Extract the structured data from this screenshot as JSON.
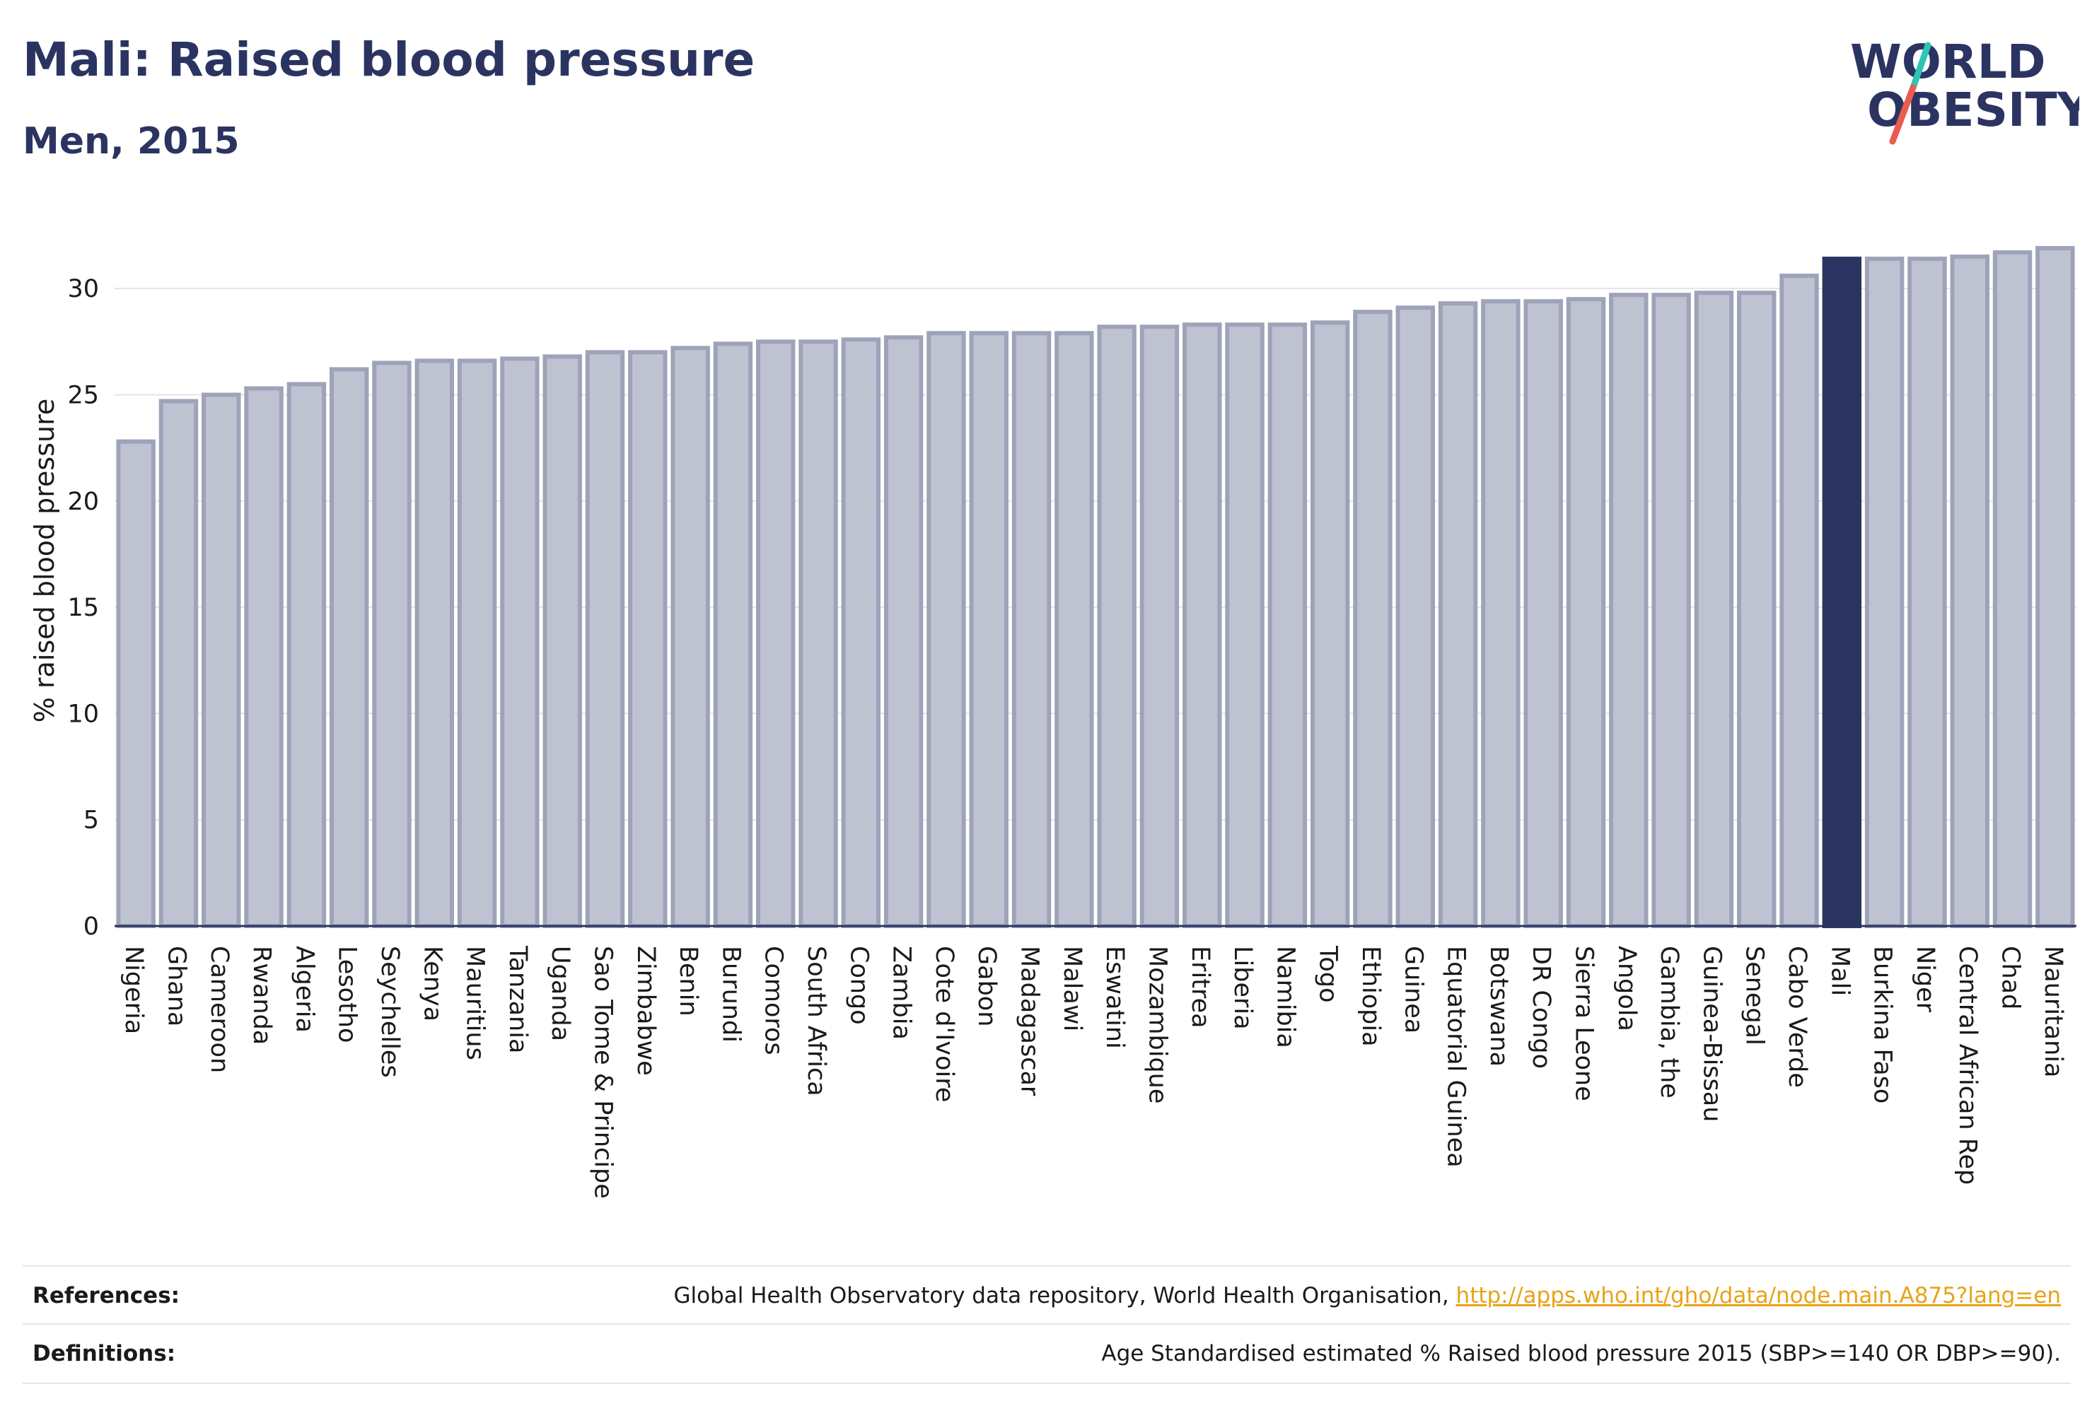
{
  "header": {
    "title": "Mali: Raised blood pressure",
    "subtitle": "Men, 2015"
  },
  "logo": {
    "line1": "WORLD",
    "line2": "OBESITY"
  },
  "colors": {
    "bar_fill": "#bfc3d1",
    "bar_stroke": "#9ea3b9",
    "highlight": "#2b3461",
    "title": "#2b3461",
    "link": "#e8a317",
    "logo_slash_teal": "#2ec4b6",
    "logo_slash_coral": "#e85d4f"
  },
  "chart_data": {
    "type": "bar",
    "ylabel": "% raised blood pressure",
    "xlabel": "",
    "ylim": [
      0,
      33
    ],
    "yticks": [
      0,
      5,
      10,
      15,
      20,
      25,
      30
    ],
    "grid": true,
    "highlight": "Mali",
    "categories": [
      "Nigeria",
      "Ghana",
      "Cameroon",
      "Rwanda",
      "Algeria",
      "Lesotho",
      "Seychelles",
      "Kenya",
      "Mauritius",
      "Tanzania",
      "Uganda",
      "Sao Tome & Principe",
      "Zimbabwe",
      "Benin",
      "Burundi",
      "Comoros",
      "South Africa",
      "Congo",
      "Zambia",
      "Cote d'Ivoire",
      "Gabon",
      "Madagascar",
      "Malawi",
      "Eswatini",
      "Mozambique",
      "Eritrea",
      "Liberia",
      "Namibia",
      "Togo",
      "Ethiopia",
      "Guinea",
      "Equatorial Guinea",
      "Botswana",
      "DR Congo",
      "Sierra Leone",
      "Angola",
      "Gambia, the",
      "Guinea-Bissau",
      "Senegal",
      "Cabo Verde",
      "Mali",
      "Burkina Faso",
      "Niger",
      "Central African Rep",
      "Chad",
      "Mauritania"
    ],
    "values": [
      22.8,
      24.7,
      25.0,
      25.3,
      25.5,
      26.2,
      26.5,
      26.6,
      26.6,
      26.7,
      26.8,
      27.0,
      27.0,
      27.2,
      27.4,
      27.5,
      27.5,
      27.6,
      27.7,
      27.9,
      27.9,
      27.9,
      27.9,
      28.2,
      28.2,
      28.3,
      28.3,
      28.3,
      28.4,
      28.9,
      29.1,
      29.3,
      29.4,
      29.4,
      29.5,
      29.7,
      29.7,
      29.8,
      29.8,
      30.6,
      31.4,
      31.4,
      31.4,
      31.5,
      31.7,
      31.9
    ]
  },
  "footer": {
    "references_label": "References:",
    "references_text": "Global Health Observatory data repository, World Health Organisation, ",
    "references_link": "http://apps.who.int/gho/data/node.main.A875?lang=en",
    "definitions_label": "Definitions:",
    "definitions_text": "Age Standardised estimated % Raised blood pressure 2015 (SBP>=140 OR DBP>=90)."
  }
}
